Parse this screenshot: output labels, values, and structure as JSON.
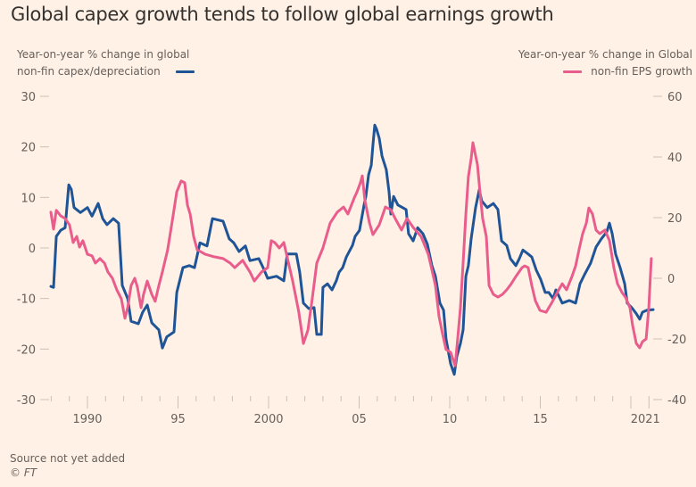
{
  "title": "Global capex growth tends to follow global earnings growth",
  "legend": {
    "left_line1": "Year-on-year % change in global",
    "left_line2": "non-fin capex/depreciation",
    "right_line1": "Year-on-year % change in Global",
    "right_line2": "non-fin EPS growth"
  },
  "footer": {
    "source": "Source not yet added",
    "copyright": "© FT"
  },
  "chart_data": {
    "type": "line",
    "title": "Global capex growth tends to follow global earnings growth",
    "xlabel": "",
    "xlim": [
      1988.0,
      2021.6
    ],
    "x_ticks": [
      {
        "value": 1990,
        "label": "1990"
      },
      {
        "value": 1995,
        "label": "95"
      },
      {
        "value": 2000,
        "label": "2000"
      },
      {
        "value": 2005,
        "label": "05"
      },
      {
        "value": 2010,
        "label": "10"
      },
      {
        "value": 2015,
        "label": "15"
      },
      {
        "value": 2021,
        "label": "2021"
      }
    ],
    "left_axis": {
      "label": "Year-on-year % change in global non-fin capex/depreciation",
      "ylim": [
        -30,
        30
      ],
      "ticks": [
        30,
        20,
        10,
        0,
        -10,
        -20,
        -30
      ]
    },
    "right_axis": {
      "label": "Year-on-year % change in Global non-fin EPS growth",
      "ylim": [
        -40,
        60
      ],
      "ticks": [
        60,
        40,
        20,
        0,
        -20,
        -40
      ]
    },
    "grid": false,
    "legend_position": "top",
    "series": [
      {
        "name": "Global non-fin capex/depreciation (yoy %)",
        "axis": "left",
        "color": "#1f5496",
        "points": [
          [
            1987.98,
            -7.6
          ],
          [
            1988.13,
            -7.8
          ],
          [
            1988.28,
            2.3
          ],
          [
            1988.52,
            3.5
          ],
          [
            1988.77,
            4
          ],
          [
            1988.97,
            12.5
          ],
          [
            1989.11,
            11.6
          ],
          [
            1989.26,
            8
          ],
          [
            1989.61,
            7
          ],
          [
            1990.0,
            8
          ],
          [
            1990.25,
            6.3
          ],
          [
            1990.59,
            8.8
          ],
          [
            1990.84,
            5.8
          ],
          [
            1991.08,
            4.6
          ],
          [
            1991.43,
            5.8
          ],
          [
            1991.72,
            4.9
          ],
          [
            1991.92,
            -7.4
          ],
          [
            1992.22,
            -10
          ],
          [
            1992.41,
            -14.5
          ],
          [
            1992.81,
            -15
          ],
          [
            1993.05,
            -12.7
          ],
          [
            1993.3,
            -11.3
          ],
          [
            1993.55,
            -14.8
          ],
          [
            1993.94,
            -16.2
          ],
          [
            1994.14,
            -19.8
          ],
          [
            1994.38,
            -17.6
          ],
          [
            1994.78,
            -16.6
          ],
          [
            1994.93,
            -8.8
          ],
          [
            1995.27,
            -3.9
          ],
          [
            1995.62,
            -3.5
          ],
          [
            1995.91,
            -3.9
          ],
          [
            1996.21,
            1
          ],
          [
            1996.6,
            0.4
          ],
          [
            1996.9,
            5.8
          ],
          [
            1997.49,
            5.3
          ],
          [
            1997.83,
            1.8
          ],
          [
            1998.08,
            1
          ],
          [
            1998.37,
            -0.7
          ],
          [
            1998.72,
            0.4
          ],
          [
            1998.97,
            -2.5
          ],
          [
            1999.46,
            -2.1
          ],
          [
            1999.7,
            -3.9
          ],
          [
            1999.95,
            -6
          ],
          [
            2000.44,
            -5.6
          ],
          [
            2000.84,
            -6.5
          ],
          [
            2001.03,
            -1.2
          ],
          [
            2001.53,
            -1.2
          ],
          [
            2001.72,
            -4.8
          ],
          [
            2001.92,
            -10.9
          ],
          [
            2002.22,
            -12
          ],
          [
            2002.51,
            -11.8
          ],
          [
            2002.66,
            -17.1
          ],
          [
            2002.91,
            -17.1
          ],
          [
            2003.0,
            -7.8
          ],
          [
            2003.25,
            -7.1
          ],
          [
            2003.5,
            -8.3
          ],
          [
            2003.74,
            -6.5
          ],
          [
            2003.89,
            -4.8
          ],
          [
            2004.09,
            -3.9
          ],
          [
            2004.29,
            -1.8
          ],
          [
            2004.63,
            0.5
          ],
          [
            2004.78,
            2.3
          ],
          [
            2005.02,
            3.5
          ],
          [
            2005.27,
            8.5
          ],
          [
            2005.37,
            10.2
          ],
          [
            2005.52,
            14.5
          ],
          [
            2005.67,
            16.4
          ],
          [
            2005.76,
            20.3
          ],
          [
            2005.86,
            24.3
          ],
          [
            2005.96,
            23.5
          ],
          [
            2006.11,
            21.7
          ],
          [
            2006.26,
            18.2
          ],
          [
            2006.5,
            15.5
          ],
          [
            2006.65,
            11.1
          ],
          [
            2006.75,
            6.7
          ],
          [
            2006.9,
            10.2
          ],
          [
            2007.14,
            8.5
          ],
          [
            2007.59,
            7.6
          ],
          [
            2007.73,
            2.8
          ],
          [
            2007.98,
            1.4
          ],
          [
            2008.23,
            4
          ],
          [
            2008.52,
            2.8
          ],
          [
            2008.77,
            0.7
          ],
          [
            2009.01,
            -3.4
          ],
          [
            2009.21,
            -5.6
          ],
          [
            2009.46,
            -10.9
          ],
          [
            2009.66,
            -12.3
          ],
          [
            2009.8,
            -18
          ],
          [
            2010.05,
            -22.9
          ],
          [
            2010.25,
            -25
          ],
          [
            2010.39,
            -21.5
          ],
          [
            2010.59,
            -18.9
          ],
          [
            2010.74,
            -16.2
          ],
          [
            2010.89,
            -5.6
          ],
          [
            2011.03,
            -3.5
          ],
          [
            2011.18,
            1.8
          ],
          [
            2011.43,
            8
          ],
          [
            2011.63,
            11.5
          ],
          [
            2011.77,
            9.3
          ],
          [
            2012.07,
            8
          ],
          [
            2012.41,
            8.8
          ],
          [
            2012.66,
            7.6
          ],
          [
            2012.86,
            1.4
          ],
          [
            2013.15,
            0.5
          ],
          [
            2013.35,
            -2.1
          ],
          [
            2013.65,
            -3.5
          ],
          [
            2013.84,
            -2.1
          ],
          [
            2014.04,
            -0.4
          ],
          [
            2014.33,
            -1.2
          ],
          [
            2014.53,
            -1.8
          ],
          [
            2014.78,
            -4.4
          ],
          [
            2015.02,
            -6.2
          ],
          [
            2015.27,
            -8.8
          ],
          [
            2015.47,
            -8.8
          ],
          [
            2015.71,
            -10
          ],
          [
            2015.86,
            -8.3
          ],
          [
            2016.21,
            -10.9
          ],
          [
            2016.6,
            -10.4
          ],
          [
            2016.95,
            -10.9
          ],
          [
            2017.19,
            -7.1
          ],
          [
            2017.44,
            -5.3
          ],
          [
            2017.78,
            -3
          ],
          [
            2018.08,
            0.2
          ],
          [
            2018.37,
            1.8
          ],
          [
            2018.67,
            3.2
          ],
          [
            2018.82,
            4.9
          ],
          [
            2018.97,
            2.8
          ],
          [
            2019.16,
            -1.2
          ],
          [
            2019.41,
            -3.9
          ],
          [
            2019.66,
            -7.1
          ],
          [
            2019.8,
            -10.9
          ],
          [
            2020.05,
            -11.8
          ],
          [
            2020.3,
            -13
          ],
          [
            2020.49,
            -14.1
          ],
          [
            2020.64,
            -12.7
          ],
          [
            2020.89,
            -12.3
          ],
          [
            2021.23,
            -12.2
          ]
        ]
      },
      {
        "name": "Global non-fin EPS growth (yoy %)",
        "axis": "right",
        "color": "#e95d8c",
        "points": [
          [
            1987.98,
            21.8
          ],
          [
            1988.13,
            16.2
          ],
          [
            1988.28,
            22.4
          ],
          [
            1988.52,
            20.6
          ],
          [
            1988.77,
            19.7
          ],
          [
            1989.01,
            17.6
          ],
          [
            1989.21,
            11.8
          ],
          [
            1989.41,
            13.8
          ],
          [
            1989.56,
            10.3
          ],
          [
            1989.75,
            12.4
          ],
          [
            1990.0,
            7.9
          ],
          [
            1990.25,
            7.4
          ],
          [
            1990.44,
            5
          ],
          [
            1990.69,
            6.5
          ],
          [
            1990.94,
            5
          ],
          [
            1991.13,
            2.1
          ],
          [
            1991.38,
            0
          ],
          [
            1991.62,
            -3.8
          ],
          [
            1991.87,
            -6.8
          ],
          [
            1992.07,
            -13.2
          ],
          [
            1992.22,
            -9.7
          ],
          [
            1992.41,
            -2.4
          ],
          [
            1992.61,
            0
          ],
          [
            1992.76,
            -2.9
          ],
          [
            1992.96,
            -9.7
          ],
          [
            1993.1,
            -5.3
          ],
          [
            1993.3,
            -0.9
          ],
          [
            1993.55,
            -5.3
          ],
          [
            1993.74,
            -7.6
          ],
          [
            1993.94,
            -2.4
          ],
          [
            1994.14,
            2.1
          ],
          [
            1994.43,
            9.4
          ],
          [
            1994.68,
            18.8
          ],
          [
            1994.93,
            28.5
          ],
          [
            1995.17,
            32.1
          ],
          [
            1995.37,
            31.5
          ],
          [
            1995.52,
            24.1
          ],
          [
            1995.67,
            21.2
          ],
          [
            1995.86,
            13.8
          ],
          [
            1996.06,
            9.4
          ],
          [
            1996.5,
            7.9
          ],
          [
            1997.0,
            7.1
          ],
          [
            1997.49,
            6.5
          ],
          [
            1997.88,
            5
          ],
          [
            1998.13,
            3.5
          ],
          [
            1998.57,
            5.9
          ],
          [
            1998.97,
            2.1
          ],
          [
            1999.21,
            -0.9
          ],
          [
            1999.61,
            2.1
          ],
          [
            1999.95,
            3.5
          ],
          [
            2000.15,
            12.4
          ],
          [
            2000.34,
            11.8
          ],
          [
            2000.59,
            10
          ],
          [
            2000.84,
            11.8
          ],
          [
            2000.99,
            7.9
          ],
          [
            2001.33,
            -0.9
          ],
          [
            2001.67,
            -11.2
          ],
          [
            2001.92,
            -21.5
          ],
          [
            2002.17,
            -17.1
          ],
          [
            2002.41,
            -6.8
          ],
          [
            2002.66,
            5
          ],
          [
            2003.0,
            10
          ],
          [
            2003.4,
            18.2
          ],
          [
            2003.79,
            21.8
          ],
          [
            2004.14,
            23.5
          ],
          [
            2004.38,
            21.2
          ],
          [
            2004.73,
            26.5
          ],
          [
            2004.88,
            28.5
          ],
          [
            2005.07,
            31.5
          ],
          [
            2005.17,
            33.8
          ],
          [
            2005.32,
            25.6
          ],
          [
            2005.57,
            18.2
          ],
          [
            2005.76,
            14.4
          ],
          [
            2006.11,
            17.6
          ],
          [
            2006.45,
            23.5
          ],
          [
            2006.75,
            22.6
          ],
          [
            2006.99,
            19.7
          ],
          [
            2007.34,
            15.9
          ],
          [
            2007.64,
            19.7
          ],
          [
            2007.98,
            16.8
          ],
          [
            2008.42,
            13.8
          ],
          [
            2008.82,
            7.9
          ],
          [
            2009.01,
            2.9
          ],
          [
            2009.21,
            -2.4
          ],
          [
            2009.41,
            -12.6
          ],
          [
            2009.61,
            -18.5
          ],
          [
            2009.8,
            -23.5
          ],
          [
            2010.05,
            -24.4
          ],
          [
            2010.3,
            -28.8
          ],
          [
            2010.44,
            -20
          ],
          [
            2010.59,
            -9.7
          ],
          [
            2010.74,
            5
          ],
          [
            2010.89,
            21.2
          ],
          [
            2011.03,
            33.5
          ],
          [
            2011.18,
            39.4
          ],
          [
            2011.28,
            44.7
          ],
          [
            2011.53,
            37.4
          ],
          [
            2011.67,
            28.5
          ],
          [
            2011.82,
            19.7
          ],
          [
            2012.02,
            13.8
          ],
          [
            2012.17,
            -2.4
          ],
          [
            2012.41,
            -5.3
          ],
          [
            2012.66,
            -6.2
          ],
          [
            2012.91,
            -5.3
          ],
          [
            2013.15,
            -3.8
          ],
          [
            2013.4,
            -1.8
          ],
          [
            2013.65,
            0.6
          ],
          [
            2013.99,
            3.5
          ],
          [
            2014.14,
            4.1
          ],
          [
            2014.33,
            3.5
          ],
          [
            2014.53,
            -2.4
          ],
          [
            2014.73,
            -7.4
          ],
          [
            2014.98,
            -10.6
          ],
          [
            2015.32,
            -11.2
          ],
          [
            2015.62,
            -8.2
          ],
          [
            2015.96,
            -4.4
          ],
          [
            2016.21,
            -1.8
          ],
          [
            2016.45,
            -3.8
          ],
          [
            2016.75,
            0.6
          ],
          [
            2016.95,
            4.1
          ],
          [
            2017.14,
            9.4
          ],
          [
            2017.34,
            14.7
          ],
          [
            2017.54,
            18.2
          ],
          [
            2017.68,
            23.2
          ],
          [
            2017.88,
            21.2
          ],
          [
            2018.08,
            15.9
          ],
          [
            2018.28,
            14.7
          ],
          [
            2018.57,
            15.9
          ],
          [
            2018.82,
            12.4
          ],
          [
            2019.06,
            3.5
          ],
          [
            2019.26,
            -1.8
          ],
          [
            2019.51,
            -4.7
          ],
          [
            2019.7,
            -6.2
          ],
          [
            2019.95,
            -9.7
          ],
          [
            2020.1,
            -15.6
          ],
          [
            2020.3,
            -21.5
          ],
          [
            2020.49,
            -22.9
          ],
          [
            2020.64,
            -20.9
          ],
          [
            2020.84,
            -20
          ],
          [
            2020.99,
            -9.7
          ],
          [
            2021.13,
            6.5
          ]
        ]
      }
    ]
  }
}
